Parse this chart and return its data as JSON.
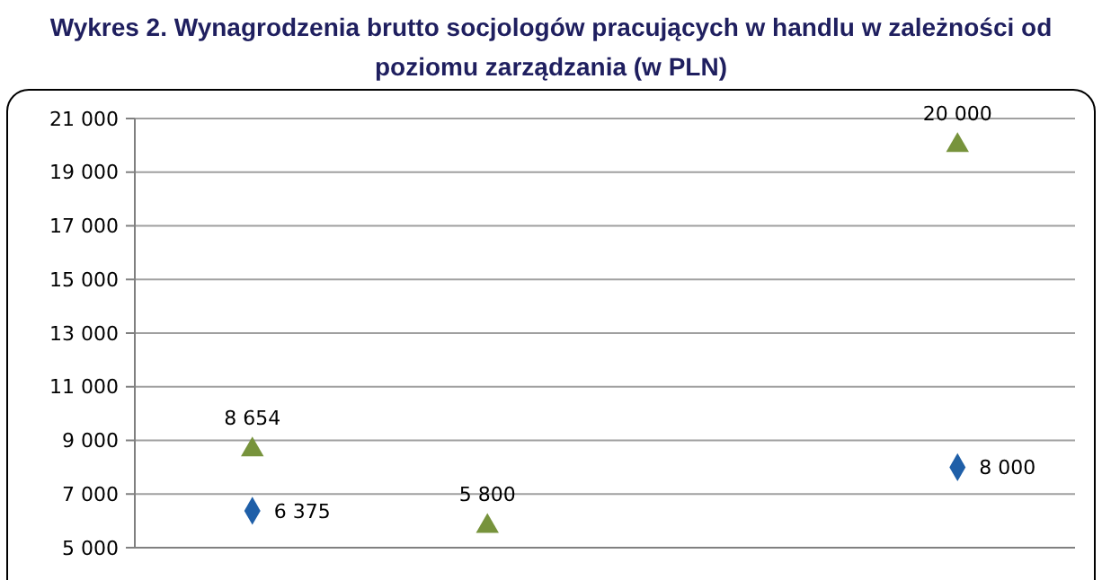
{
  "chart_data": {
    "type": "scatter",
    "title": "Wykres 2. Wynagrodzenia brutto socjologów pracujących w handlu w zależności od poziomu zarządzania (w PLN)",
    "categories": [
      null,
      null,
      null,
      null
    ],
    "series": [
      {
        "color": "#77933c",
        "marker": "triangle",
        "values": [
          8654,
          5800,
          null,
          20000
        ]
      },
      {
        "color": "#1f5fa8",
        "marker": "diamond",
        "values": [
          6375,
          null,
          null,
          8000
        ]
      }
    ],
    "ylim": [
      5000,
      21000
    ],
    "yticks": [
      {
        "value": 5000,
        "label": "5 000"
      },
      {
        "value": 7000,
        "label": "7 000"
      },
      {
        "value": 9000,
        "label": "9 000"
      },
      {
        "value": 11000,
        "label": "11 000"
      },
      {
        "value": 13000,
        "label": "13 000"
      },
      {
        "value": 15000,
        "label": "15 000"
      },
      {
        "value": 17000,
        "label": "17 000"
      },
      {
        "value": 19000,
        "label": "19 000"
      },
      {
        "value": 21000,
        "label": "21 000"
      }
    ],
    "grid": "y",
    "data_labels": true,
    "tick_labels": "y"
  }
}
